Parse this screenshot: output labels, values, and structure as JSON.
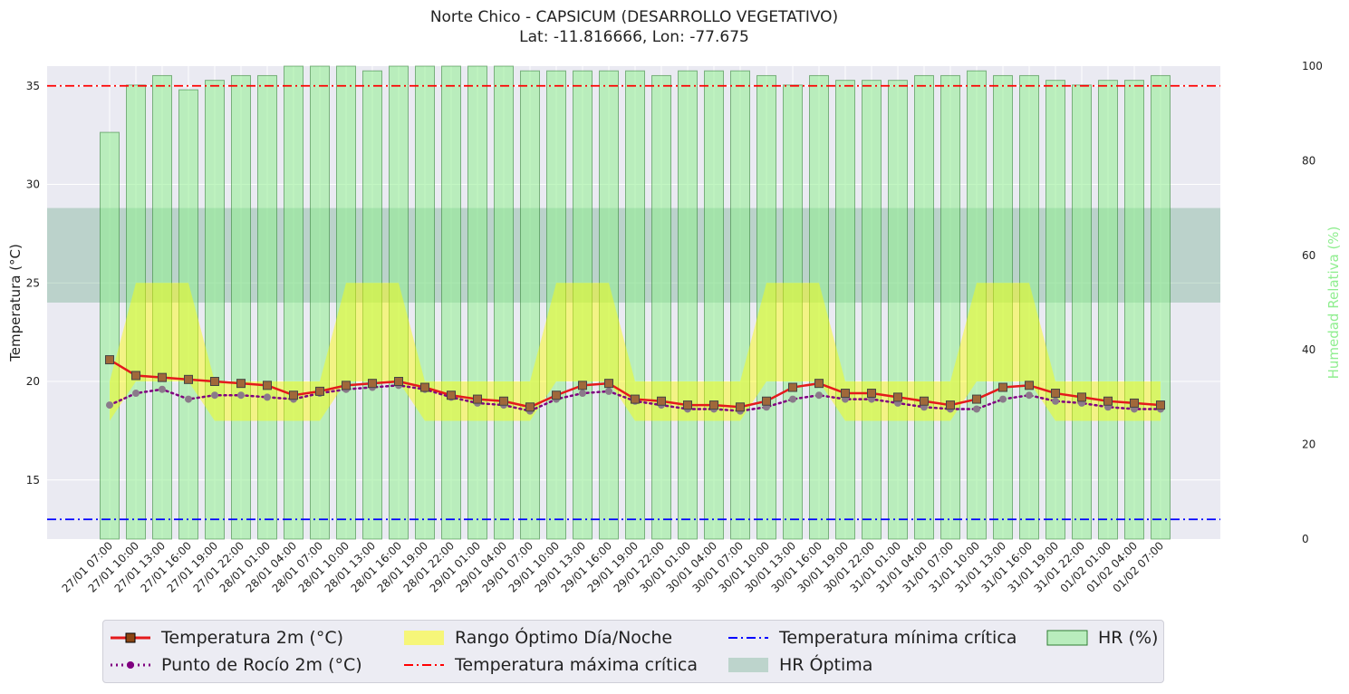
{
  "chart_data": {
    "type": "bar+line",
    "title": "Norte Chico - CAPSICUM (DESARROLLO VEGETATIVO)",
    "subtitle": "Lat: -11.816666, Lon: -77.675",
    "ylabel": "Temperatura (°C)",
    "y2label": "Humedad Relativa (%)",
    "ylim": [
      12,
      36
    ],
    "y2lim": [
      0,
      100
    ],
    "yticks": [
      15,
      20,
      25,
      30,
      35
    ],
    "y2ticks": [
      0,
      20,
      40,
      60,
      80,
      100
    ],
    "grid": true,
    "legend_position": "bottom",
    "x": [
      "27/01 07:00",
      "27/01 10:00",
      "27/01 13:00",
      "27/01 16:00",
      "27/01 19:00",
      "27/01 22:00",
      "28/01 01:00",
      "28/01 04:00",
      "28/01 07:00",
      "28/01 10:00",
      "28/01 13:00",
      "28/01 16:00",
      "28/01 19:00",
      "28/01 22:00",
      "29/01 01:00",
      "29/01 04:00",
      "29/01 07:00",
      "29/01 10:00",
      "29/01 13:00",
      "29/01 16:00",
      "29/01 19:00",
      "29/01 22:00",
      "30/01 01:00",
      "30/01 04:00",
      "30/01 07:00",
      "30/01 10:00",
      "30/01 13:00",
      "30/01 16:00",
      "30/01 19:00",
      "30/01 22:00",
      "31/01 01:00",
      "31/01 04:00",
      "31/01 07:00",
      "31/01 10:00",
      "31/01 13:00",
      "31/01 16:00",
      "31/01 19:00",
      "31/01 22:00",
      "01/02 01:00",
      "01/02 04:00",
      "01/02 07:00"
    ],
    "series": [
      {
        "name": "Temperatura 2m (°C)",
        "type": "line",
        "color": "#e41a1c",
        "values": [
          21.1,
          20.3,
          20.2,
          20.1,
          20.0,
          19.9,
          19.8,
          19.3,
          19.5,
          19.8,
          19.9,
          20.0,
          19.7,
          19.3,
          19.1,
          19.0,
          18.7,
          19.3,
          19.8,
          19.9,
          19.1,
          19.0,
          18.8,
          18.8,
          18.7,
          19.0,
          19.7,
          19.9,
          19.4,
          19.4,
          19.2,
          19.0,
          18.8,
          19.1,
          19.7,
          19.8,
          19.4,
          19.2,
          19.0,
          18.9,
          18.8
        ]
      },
      {
        "name": "Punto de Rocío 2m (°C)",
        "type": "line",
        "color": "#800080",
        "values": [
          18.8,
          19.4,
          19.6,
          19.1,
          19.3,
          19.3,
          19.2,
          19.1,
          19.4,
          19.6,
          19.7,
          19.8,
          19.6,
          19.2,
          18.9,
          18.8,
          18.5,
          19.1,
          19.4,
          19.5,
          19.0,
          18.8,
          18.6,
          18.6,
          18.5,
          18.7,
          19.1,
          19.3,
          19.1,
          19.1,
          18.9,
          18.7,
          18.6,
          18.6,
          19.1,
          19.3,
          19.0,
          18.9,
          18.7,
          18.6,
          18.6
        ]
      },
      {
        "name": "HR (%)",
        "type": "bar",
        "axis": "y2",
        "color": "#90ee90",
        "values": [
          86,
          96,
          98,
          95,
          97,
          98,
          98,
          100,
          100,
          100,
          99,
          100,
          100,
          100,
          100,
          100,
          99,
          99,
          99,
          99,
          99,
          98,
          99,
          99,
          99,
          98,
          96,
          98,
          97,
          97,
          97,
          98,
          98,
          99,
          98,
          98,
          97,
          96,
          97,
          97,
          98
        ]
      },
      {
        "name": "Rango Óptimo Día/Noche",
        "type": "band",
        "color": "#ffff00",
        "day_range": [
          20,
          25
        ],
        "night_range": [
          18,
          20
        ]
      },
      {
        "name": "Temperatura máxima crítica",
        "type": "hline",
        "value": 35,
        "color": "#ff0000"
      },
      {
        "name": "Temperatura mínima crítica",
        "type": "hline",
        "value": 13,
        "color": "#0000ff"
      },
      {
        "name": "HR Óptima",
        "type": "hband",
        "axis": "y2",
        "range": [
          50,
          70
        ],
        "color": "#2e8b57"
      }
    ]
  }
}
